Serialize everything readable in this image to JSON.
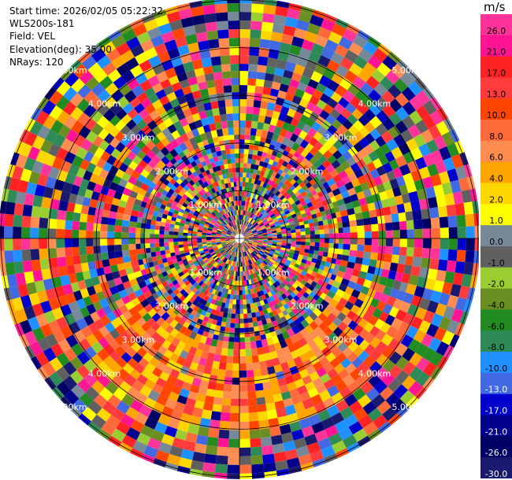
{
  "header": {
    "start_time": "Start time: 2026/02/05 05:22:32",
    "instrument": "WLS200s-181",
    "field": "Field: VEL",
    "elevation": "Elevation(deg): 35.00",
    "nrays": "NRays: 120"
  },
  "colorbar": {
    "unit": "m/s",
    "bins": [
      {
        "label": "26.0",
        "color": "#ff3399"
      },
      {
        "label": "21.0",
        "color": "#ff1493"
      },
      {
        "label": "17.0",
        "color": "#ff2222"
      },
      {
        "label": "13.0",
        "color": "#ff3b3b"
      },
      {
        "label": "10.0",
        "color": "#ff4500"
      },
      {
        "label": "8.0",
        "color": "#ff6a3a"
      },
      {
        "label": "6.0",
        "color": "#ff8c50"
      },
      {
        "label": "4.0",
        "color": "#ffa500"
      },
      {
        "label": "2.0",
        "color": "#ffd700"
      },
      {
        "label": "1.0",
        "color": "#ffff00"
      },
      {
        "label": "0.0",
        "color": "#778899"
      },
      {
        "label": "-1.0",
        "color": "#606060"
      },
      {
        "label": "-2.0",
        "color": "#9acd32"
      },
      {
        "label": "-4.0",
        "color": "#6b8e23"
      },
      {
        "label": "-6.0",
        "color": "#228b22"
      },
      {
        "label": "-8.0",
        "color": "#2e8b57"
      },
      {
        "label": "-10.0",
        "color": "#1e90ff"
      },
      {
        "label": "-13.0",
        "color": "#4169e1"
      },
      {
        "label": "-17.0",
        "color": "#0000cd"
      },
      {
        "label": "-21.0",
        "color": "#00008b"
      },
      {
        "label": "-26.0",
        "color": "#000066"
      },
      {
        "label": "-30.0",
        "color": "#191970"
      }
    ]
  },
  "chart_data": {
    "type": "heatmap",
    "projection": "polar (PPI)",
    "field": "VEL",
    "nrays": 120,
    "range_rings_km": [
      1.0,
      2.0,
      3.0,
      4.0,
      5.0
    ],
    "ring_labels": [
      "1.00km",
      "2.00km",
      "3.00km",
      "4.00km",
      "5.00km"
    ],
    "max_range_km": 5.05,
    "features": [
      {
        "description": "large region of positive velocities",
        "azimuth_deg": [
          120,
          240
        ],
        "range_km": [
          2.4,
          4.1
        ],
        "value_ms": 10.0
      }
    ]
  }
}
